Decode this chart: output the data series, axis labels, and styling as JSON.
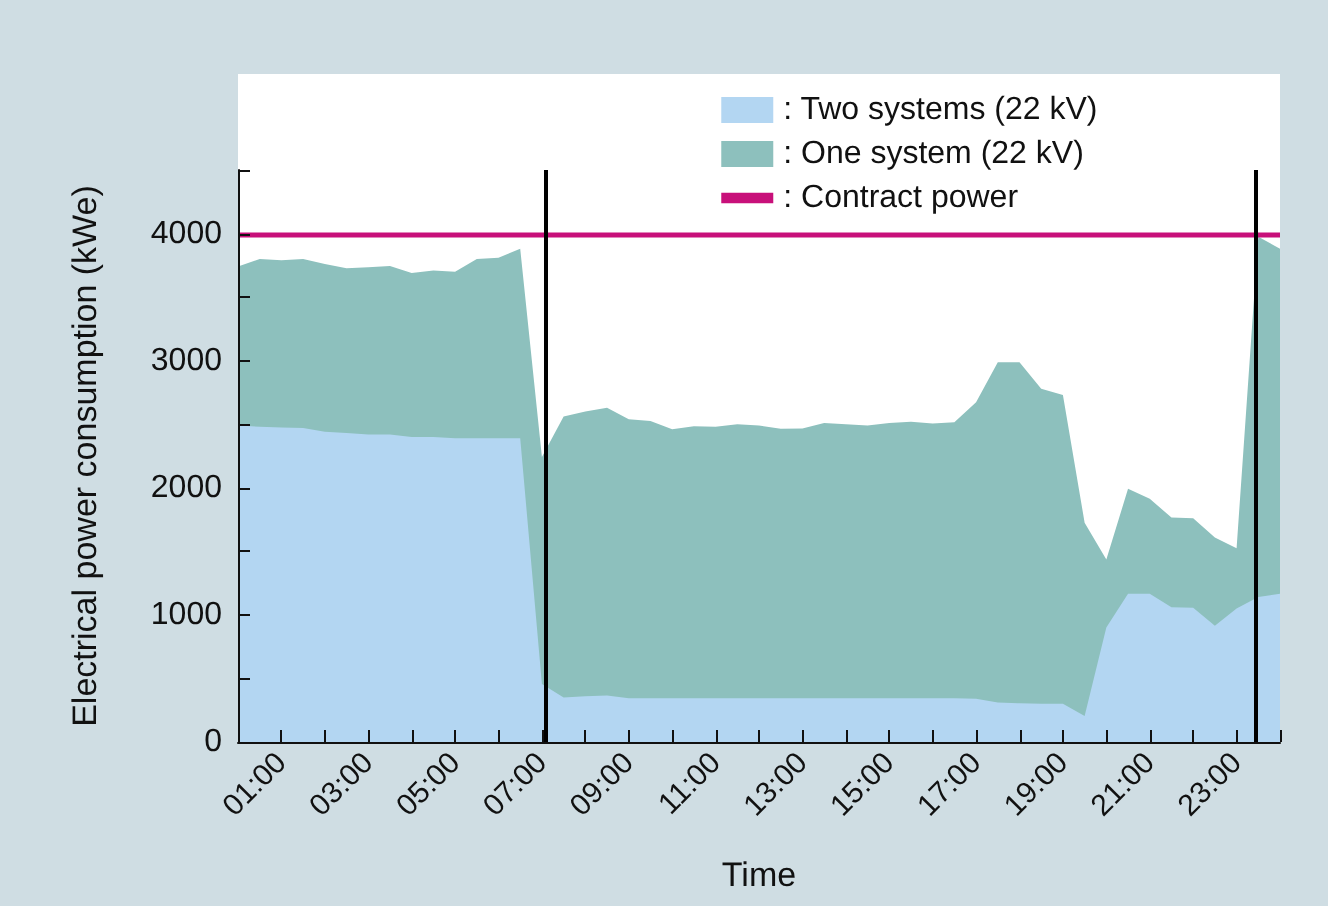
{
  "chart_data": {
    "type": "area",
    "stacked": true,
    "xlabel": "Time",
    "ylabel": "Electrical power consumption (kWe)",
    "x": [
      0,
      0.5,
      1,
      1.5,
      2,
      2.5,
      3,
      3.5,
      4,
      4.5,
      5,
      5.5,
      6,
      6.5,
      7,
      7.5,
      8,
      8.5,
      9,
      9.5,
      10,
      10.5,
      11,
      11.5,
      12,
      12.5,
      13,
      13.5,
      14,
      14.5,
      15,
      15.5,
      16,
      16.5,
      17,
      17.5,
      18,
      18.5,
      19,
      19.5,
      20,
      20.5,
      21,
      21.5,
      22,
      22.5,
      23,
      23.5,
      24
    ],
    "series": [
      {
        "name": ": Two systems (22 kV)",
        "color": "#b3d6f2",
        "values": [
          2490,
          2480,
          2475,
          2470,
          2440,
          2430,
          2420,
          2420,
          2400,
          2400,
          2390,
          2390,
          2390,
          2390,
          457,
          350,
          360,
          365,
          345,
          345,
          345,
          345,
          345,
          345,
          345,
          345,
          345,
          345,
          345,
          345,
          345,
          345,
          345,
          345,
          340,
          310,
          305,
          300,
          300,
          205,
          900,
          1166,
          1166,
          1060,
          1056,
          914,
          1050,
          1140,
          1166
        ]
      },
      {
        "name": ": One system (22 kV)",
        "color": "#8dc0bd",
        "values": [
          1250,
          1320,
          1315,
          1330,
          1320,
          1298,
          1315,
          1325,
          1290,
          1310,
          1310,
          1410,
          1420,
          1490,
          1786,
          2210,
          2240,
          2265,
          2195,
          2181,
          2115,
          2139,
          2135,
          2155,
          2144,
          2120,
          2122,
          2165,
          2155,
          2145,
          2165,
          2175,
          2160,
          2170,
          2332,
          2677,
          2682,
          2480,
          2430,
          1520,
          536,
          826,
          747,
          706,
          705,
          695,
          475,
          2835,
          2714
        ]
      }
    ],
    "ref_lines": [
      {
        "axis": "y",
        "value": 4000,
        "label": ": Contract power",
        "color": "#c8107a"
      },
      {
        "axis": "x",
        "value": 7.1,
        "color": "#000000"
      },
      {
        "axis": "x",
        "value": 23.45,
        "color": "#000000"
      }
    ],
    "xlim": [
      0,
      24
    ],
    "xticks": [
      {
        "value": 0,
        "label": null
      },
      {
        "value": 1,
        "label": "01:00"
      },
      {
        "value": 2,
        "label": null
      },
      {
        "value": 3,
        "label": "03:00"
      },
      {
        "value": 4,
        "label": null
      },
      {
        "value": 5,
        "label": "05:00"
      },
      {
        "value": 6,
        "label": null
      },
      {
        "value": 7,
        "label": "07:00"
      },
      {
        "value": 8,
        "label": null
      },
      {
        "value": 9,
        "label": "09:00"
      },
      {
        "value": 10,
        "label": null
      },
      {
        "value": 11,
        "label": "11:00"
      },
      {
        "value": 12,
        "label": null
      },
      {
        "value": 13,
        "label": "13:00"
      },
      {
        "value": 14,
        "label": null
      },
      {
        "value": 15,
        "label": "15:00"
      },
      {
        "value": 16,
        "label": null
      },
      {
        "value": 17,
        "label": "17:00"
      },
      {
        "value": 18,
        "label": null
      },
      {
        "value": 19,
        "label": "19:00"
      },
      {
        "value": 20,
        "label": null
      },
      {
        "value": 21,
        "label": "21:00"
      },
      {
        "value": 22,
        "label": null
      },
      {
        "value": 23,
        "label": "23:00"
      },
      {
        "value": 24,
        "label": null
      }
    ],
    "ylim": [
      0,
      4500
    ],
    "yticks": [
      0,
      {
        "value": 500,
        "label": null
      },
      1000,
      {
        "value": 1500,
        "label": null
      },
      2000,
      {
        "value": 2500,
        "label": null
      },
      3000,
      {
        "value": 3500,
        "label": null
      },
      4000,
      {
        "value": 4500,
        "label": null
      }
    ],
    "grid": false,
    "legend": "top right"
  }
}
